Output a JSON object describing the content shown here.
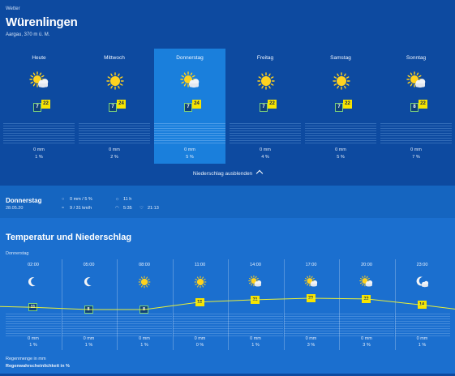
{
  "header": {
    "kicker": "Wetter",
    "title": "Würenlingen",
    "subtitle": "Aargau, 370 m ü. M."
  },
  "days": [
    {
      "name": "Heute",
      "icon": "sun-cloud-icon",
      "min": "7",
      "max": "22",
      "precip": "0 mm",
      "prob": "1 %"
    },
    {
      "name": "Mittwoch",
      "icon": "sun-icon",
      "min": "7",
      "max": "24",
      "precip": "0 mm",
      "prob": "2 %"
    },
    {
      "name": "Donnerstag",
      "icon": "sun-cloud-icon",
      "min": "7",
      "max": "24",
      "precip": "0 mm",
      "prob": "5 %",
      "active": true
    },
    {
      "name": "Freitag",
      "icon": "sun-icon",
      "min": "7",
      "max": "22",
      "precip": "0 mm",
      "prob": "4 %"
    },
    {
      "name": "Samstag",
      "icon": "sun-icon",
      "min": "7",
      "max": "22",
      "precip": "0 mm",
      "prob": "5 %"
    },
    {
      "name": "Sonntag",
      "icon": "sun-cloud-icon",
      "min": "8",
      "max": "22",
      "precip": "0 mm",
      "prob": "7 %"
    }
  ],
  "toggle_label": "Niederschlag ausblenden",
  "detail": {
    "day": "Donnerstag",
    "date": "28.05.20",
    "precip": "0 mm / 5 %",
    "wind": "9 / 31 km/h",
    "sunshine": "11 h",
    "sunrise": "5:35",
    "sunset": "21:13"
  },
  "chart_section": {
    "title": "Temperatur und Niederschlag",
    "day": "Donnerstag"
  },
  "slots": [
    {
      "time": "02:00",
      "icon": "moon-icon",
      "temp": "11",
      "kind": "min",
      "precip": "0 mm",
      "prob": "1 %"
    },
    {
      "time": "05:00",
      "icon": "moon-icon",
      "temp": "8",
      "kind": "min",
      "precip": "0 mm",
      "prob": "1 %"
    },
    {
      "time": "08:00",
      "icon": "sun-icon",
      "temp": "8",
      "kind": "min",
      "precip": "0 mm",
      "prob": "1 %"
    },
    {
      "time": "11:00",
      "icon": "sun-icon",
      "temp": "18",
      "kind": "max",
      "precip": "0 mm",
      "prob": "0 %"
    },
    {
      "time": "14:00",
      "icon": "sun-cloud-icon",
      "temp": "21",
      "kind": "max",
      "precip": "0 mm",
      "prob": "1 %"
    },
    {
      "time": "17:00",
      "icon": "sun-cloud-icon",
      "temp": "23",
      "kind": "max",
      "precip": "0 mm",
      "prob": "3 %"
    },
    {
      "time": "20:00",
      "icon": "sun-cloud-icon",
      "temp": "22",
      "kind": "max",
      "precip": "0 mm",
      "prob": "3 %"
    },
    {
      "time": "23:00",
      "icon": "moon-cloud-icon",
      "temp": "14",
      "kind": "max",
      "precip": "0 mm",
      "prob": "1 %"
    }
  ],
  "legend": {
    "line1": "Regenmenge in mm",
    "line2": "Regenwahrscheinlichkeit in %"
  },
  "colors": {
    "max_temp": "#f7e400",
    "min_temp_border": "#7bd07b",
    "active_day": "#1a7fdc",
    "line": "#e8ef3a"
  }
}
